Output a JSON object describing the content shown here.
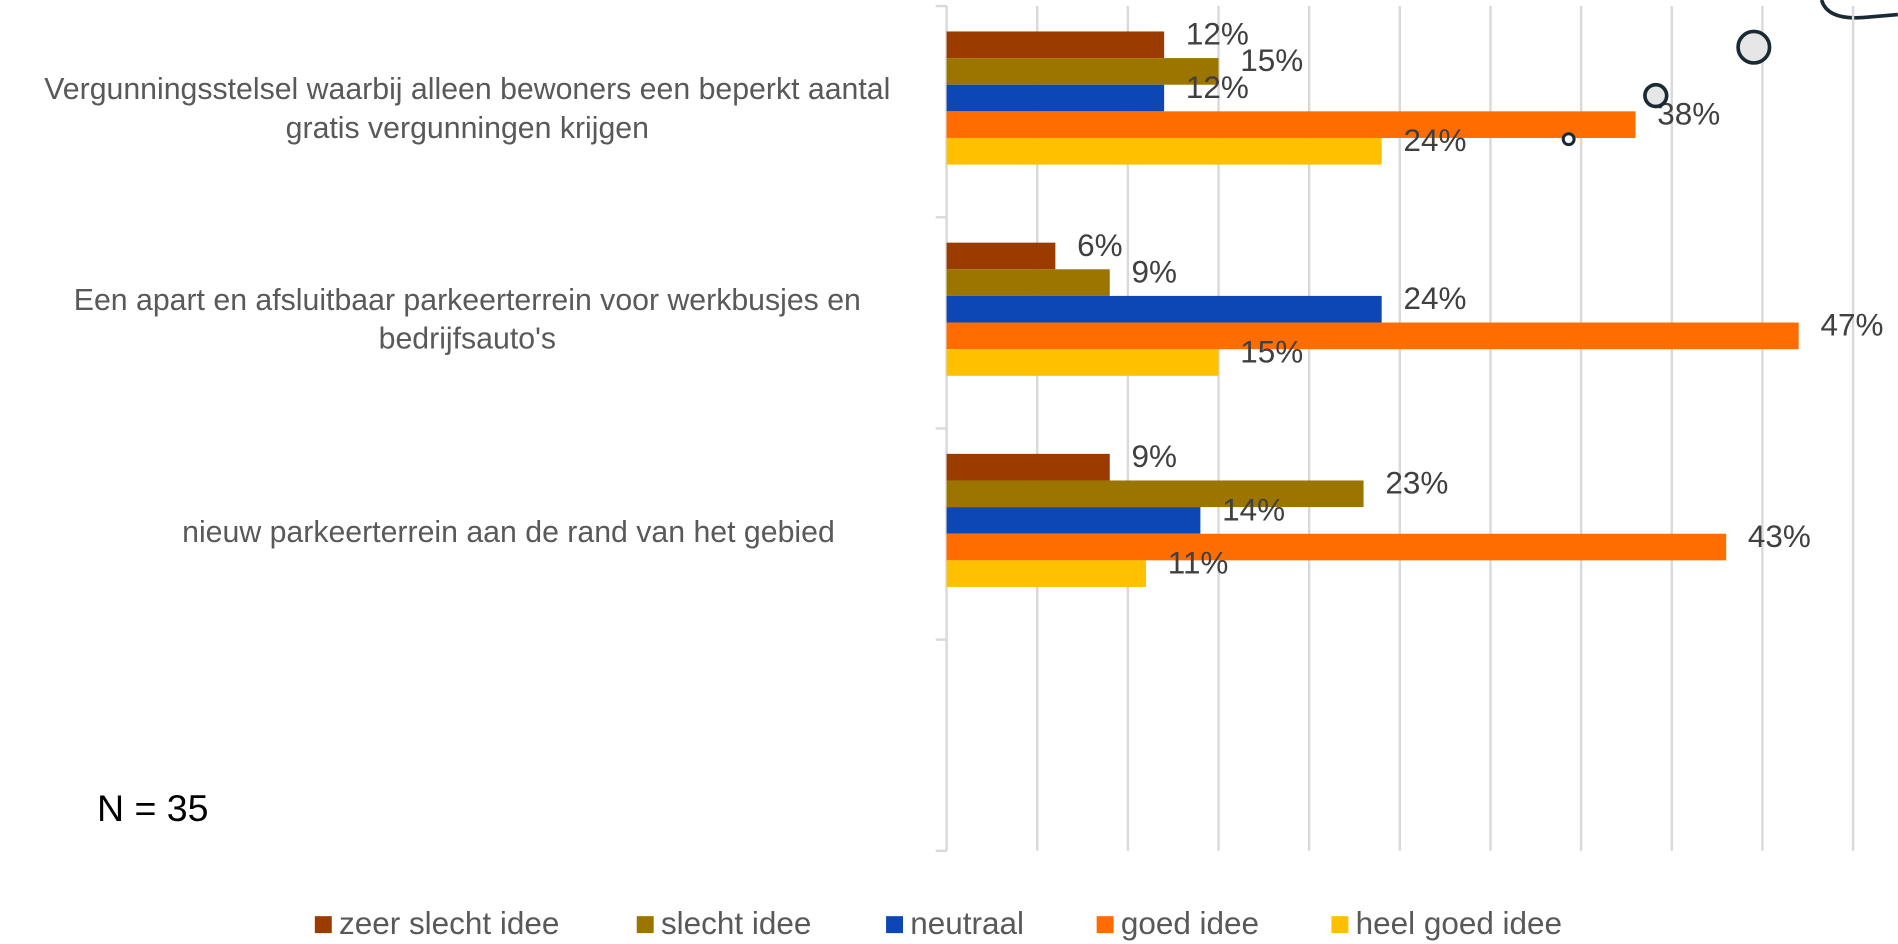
{
  "chart_data": {
    "type": "bar",
    "orientation": "horizontal",
    "categories": [
      "Vergunningsstelsel waarbij alleen bewoners een beperkt aantal gratis vergunningen  krijgen",
      "Een apart en afsluitbaar parkeerterrein voor werkbusjes en bedrijfsauto's",
      "nieuw parkeerterrein aan de rand van het gebied"
    ],
    "series": [
      {
        "name": "zeer slecht idee",
        "color": "#9c3b00",
        "values": [
          12,
          6,
          9
        ],
        "value_labels": [
          "12%",
          "6%",
          "9%"
        ]
      },
      {
        "name": "slecht idee",
        "color": "#9c7400",
        "values": [
          15,
          9,
          23
        ],
        "value_labels": [
          "15%",
          "9%",
          "23%"
        ]
      },
      {
        "name": "neutraal",
        "color": "#0d47b5",
        "values": [
          12,
          24,
          14
        ],
        "value_labels": [
          "12%",
          "24%",
          "14%"
        ]
      },
      {
        "name": "goed idee",
        "color": "#ff6d00",
        "values": [
          38,
          47,
          43
        ],
        "value_labels": [
          "38%",
          "47%",
          "43%"
        ]
      },
      {
        "name": "heel goed idee",
        "color": "#ffc000",
        "values": [
          24,
          15,
          11
        ],
        "value_labels": [
          "24%",
          "15%",
          "11%"
        ]
      }
    ],
    "xlim": [
      0,
      50
    ],
    "xticks": [
      0,
      5,
      10,
      15,
      20,
      25,
      30,
      35,
      40,
      45,
      50
    ],
    "grid": true,
    "legend": "bottom",
    "annotations": [
      "N = 35"
    ]
  }
}
